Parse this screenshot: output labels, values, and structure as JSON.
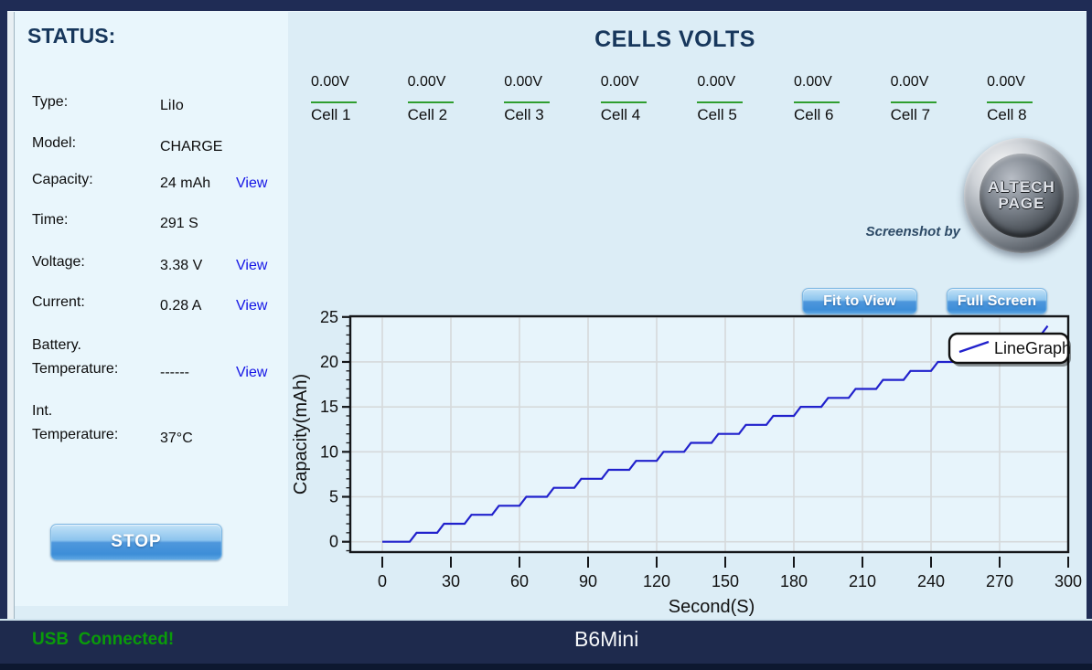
{
  "status_panel": {
    "title": "STATUS:",
    "rows": [
      {
        "label": "Type:",
        "value": "LiIo",
        "view": ""
      },
      {
        "label": "Model:",
        "value": "CHARGE",
        "view": ""
      },
      {
        "label": "Capacity:",
        "value": "24 mAh",
        "view": "View"
      },
      {
        "label": "Time:",
        "value": "291 S",
        "view": ""
      },
      {
        "label": "Voltage:",
        "value": "3.38 V",
        "view": "View"
      },
      {
        "label": "Current:",
        "value": "0.28 A",
        "view": "View"
      },
      {
        "label": "Battery.\nTemperature:",
        "value": "------",
        "view": "View"
      },
      {
        "label": "Int.\nTemperature:",
        "value": "37°C",
        "view": ""
      }
    ],
    "stop_button": "STOP"
  },
  "cells_section": {
    "title": "CELLS VOLTS",
    "cells": [
      {
        "value": "0.00V",
        "label": "Cell 1"
      },
      {
        "value": "0.00V",
        "label": "Cell 2"
      },
      {
        "value": "0.00V",
        "label": "Cell 3"
      },
      {
        "value": "0.00V",
        "label": "Cell 4"
      },
      {
        "value": "0.00V",
        "label": "Cell 5"
      },
      {
        "value": "0.00V",
        "label": "Cell 6"
      },
      {
        "value": "0.00V",
        "label": "Cell 7"
      },
      {
        "value": "0.00V",
        "label": "Cell 8"
      }
    ]
  },
  "watermark": {
    "caption": "Screenshot by",
    "logo_top": "ALTECH",
    "logo_bottom": "PAGE"
  },
  "toolbar": {
    "fit_to_view": "Fit to View",
    "full_screen": "Full Screen"
  },
  "chart_data": {
    "type": "line",
    "title": "",
    "xlabel": "Second(S)",
    "ylabel": "Capacity(mAh)",
    "xlim": [
      -14,
      300
    ],
    "ylim": [
      -1.15,
      25.08
    ],
    "xticks": [
      0,
      30,
      60,
      90,
      120,
      150,
      180,
      210,
      240,
      270,
      300
    ],
    "yticks": [
      0,
      5,
      10,
      15,
      20,
      25
    ],
    "grid": true,
    "legend": {
      "label": "LineGraph",
      "position": "top-right"
    },
    "line_color": "#2121cc",
    "series": [
      {
        "name": "LineGraph",
        "points": [
          [
            0,
            0
          ],
          [
            12,
            0
          ],
          [
            15,
            1
          ],
          [
            24,
            1
          ],
          [
            27,
            2
          ],
          [
            36,
            2
          ],
          [
            39,
            3
          ],
          [
            48,
            3
          ],
          [
            51,
            4
          ],
          [
            60,
            4
          ],
          [
            63,
            5
          ],
          [
            72,
            5
          ],
          [
            75,
            6
          ],
          [
            84,
            6
          ],
          [
            87,
            7
          ],
          [
            96,
            7
          ],
          [
            99,
            8
          ],
          [
            108,
            8
          ],
          [
            111,
            9
          ],
          [
            120,
            9
          ],
          [
            123,
            10
          ],
          [
            132,
            10
          ],
          [
            135,
            11
          ],
          [
            144,
            11
          ],
          [
            147,
            12
          ],
          [
            156,
            12
          ],
          [
            159,
            13
          ],
          [
            168,
            13
          ],
          [
            171,
            14
          ],
          [
            180,
            14
          ],
          [
            183,
            15
          ],
          [
            192,
            15
          ],
          [
            195,
            16
          ],
          [
            204,
            16
          ],
          [
            207,
            17
          ],
          [
            216,
            17
          ],
          [
            219,
            18
          ],
          [
            228,
            18
          ],
          [
            231,
            19
          ],
          [
            240,
            19
          ],
          [
            243,
            20
          ],
          [
            252,
            20
          ],
          [
            255,
            21
          ],
          [
            264,
            21
          ],
          [
            267,
            22
          ],
          [
            276,
            22
          ],
          [
            279,
            23
          ],
          [
            288,
            23
          ],
          [
            291,
            24
          ]
        ]
      }
    ]
  },
  "footer": {
    "usb_status": "USB  Connected!",
    "device_name": "B6Mini"
  },
  "colors": {
    "frame_navy": "#1f2c55",
    "panel_bg": "#e9f6fc",
    "main_bg": "#dcedf6",
    "title_navy": "#17375c",
    "link_blue": "#1414e6",
    "cell_rule_green": "#2f9e2f",
    "usb_green": "#0a9b0a",
    "button_blue": "#3d8ed8",
    "chart_line_blue": "#2121cc"
  }
}
